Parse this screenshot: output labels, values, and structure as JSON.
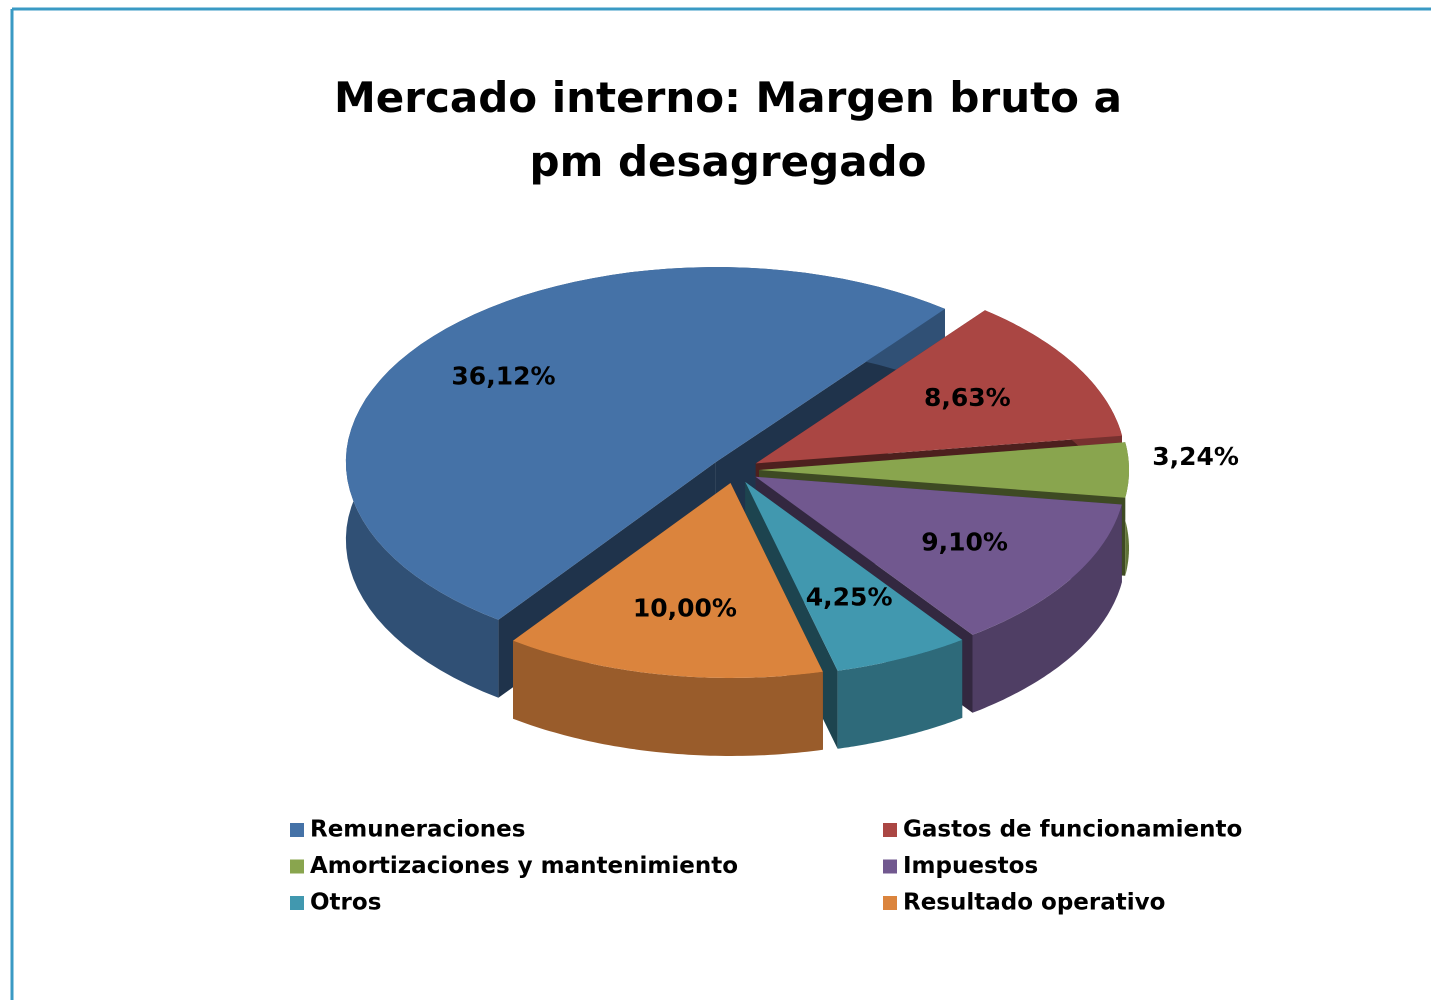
{
  "chart_data": {
    "type": "pie",
    "title": "Mercado interno: Margen bruto a pm desagregado",
    "categories": [
      "Remuneraciones",
      "Gastos de funcionamiento",
      "Amortizaciones y mantenimiento",
      "Impuestos",
      "Otros",
      "Resultado operativo"
    ],
    "values": [
      36.12,
      8.63,
      3.24,
      9.1,
      4.25,
      10.0
    ],
    "value_labels": [
      "36,12%",
      "8,63%",
      "3,24%",
      "9,10%",
      "4,25%",
      "10,00%"
    ],
    "colors": [
      "#4572A7",
      "#AA4643",
      "#89A54E",
      "#71588F",
      "#4198AF",
      "#DB843D"
    ]
  }
}
